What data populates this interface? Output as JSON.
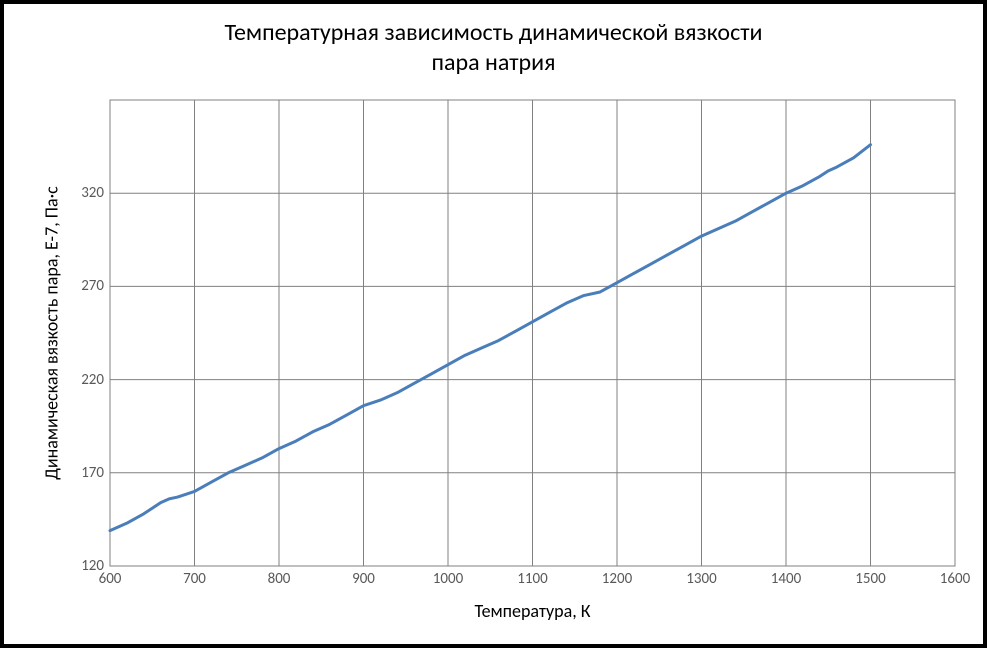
{
  "chart": {
    "type": "line",
    "title_line1": "Температурная зависимость динамической вязкости",
    "title_line2": "пара натрия",
    "title_fontsize": 24,
    "title_color": "#000000",
    "x_axis_label": "Температура, К",
    "y_axis_label": "Динамическая вязкость пара, E-7, Па·с",
    "axis_label_fontsize": 18,
    "axis_label_color": "#000000",
    "tick_fontsize": 15,
    "tick_color": "#595959",
    "background_color": "#ffffff",
    "outer_border_color": "#000000",
    "outer_border_width": 4,
    "plot_border_color": "#808080",
    "grid_color": "#808080",
    "grid_width": 1,
    "line_color": "#4a7ebb",
    "line_width": 3,
    "xlim": [
      600,
      1600
    ],
    "ylim": [
      120,
      370
    ],
    "xtick_step": 100,
    "ytick_step": 50,
    "xticks": [
      600,
      700,
      800,
      900,
      1000,
      1100,
      1200,
      1300,
      1400,
      1500,
      1600
    ],
    "yticks": [
      120,
      170,
      220,
      270,
      320
    ],
    "series": {
      "x": [
        600,
        620,
        640,
        660,
        670,
        680,
        700,
        720,
        740,
        760,
        780,
        800,
        820,
        840,
        860,
        880,
        900,
        920,
        940,
        960,
        980,
        1000,
        1020,
        1040,
        1060,
        1080,
        1100,
        1120,
        1140,
        1160,
        1180,
        1200,
        1220,
        1240,
        1260,
        1280,
        1300,
        1320,
        1340,
        1360,
        1380,
        1400,
        1420,
        1440,
        1450,
        1460,
        1480,
        1500
      ],
      "y": [
        139,
        143,
        148,
        154,
        156,
        157,
        160,
        165,
        170,
        174,
        178,
        183,
        187,
        192,
        196,
        201,
        206,
        209,
        213,
        218,
        223,
        228,
        233,
        237,
        241,
        246,
        251,
        256,
        261,
        265,
        267,
        272,
        277,
        282,
        287,
        292,
        297,
        301,
        305,
        310,
        315,
        320,
        324,
        329,
        332,
        334,
        339,
        346
      ]
    }
  }
}
